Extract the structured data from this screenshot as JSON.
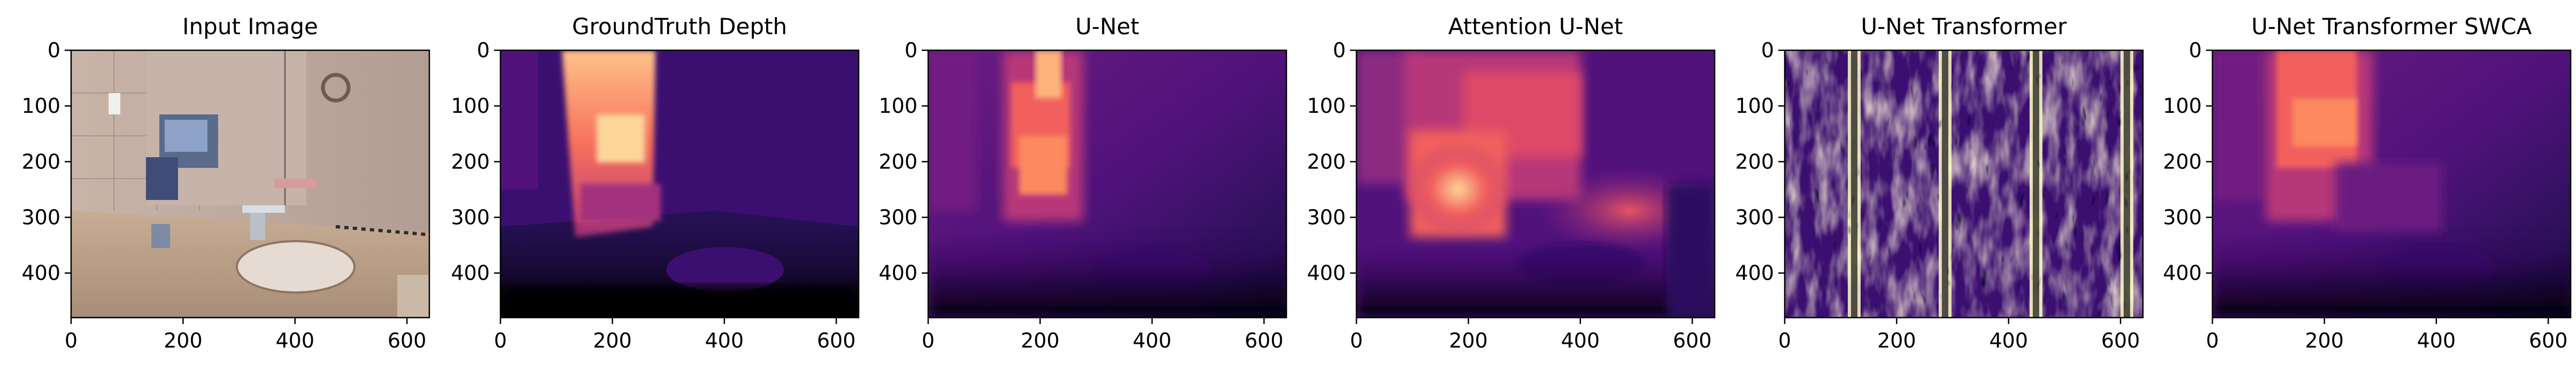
{
  "panels": [
    {
      "title": "Input Image",
      "kind": "rgb"
    },
    {
      "title": "GroundTruth Depth",
      "kind": "gt"
    },
    {
      "title": "U-Net",
      "kind": "unet"
    },
    {
      "title": "Attention U-Net",
      "kind": "attn"
    },
    {
      "title": "U-Net Transformer",
      "kind": "noise"
    },
    {
      "title": "U-Net Transformer SWCA",
      "kind": "swca"
    }
  ],
  "axes": {
    "x_ticks": [
      "0",
      "200",
      "400",
      "600"
    ],
    "x_values": [
      0,
      200,
      400,
      600
    ],
    "y_ticks": [
      "0",
      "100",
      "200",
      "300",
      "400"
    ],
    "y_values": [
      0,
      100,
      200,
      300,
      400
    ],
    "x_range": [
      0,
      640
    ],
    "y_range": [
      0,
      480
    ]
  },
  "colors": {
    "magma_dark": "#000004",
    "magma_purple": "#51127c",
    "magma_magenta": "#b73779",
    "magma_orange": "#fc8961",
    "magma_light": "#fcfdbf"
  }
}
